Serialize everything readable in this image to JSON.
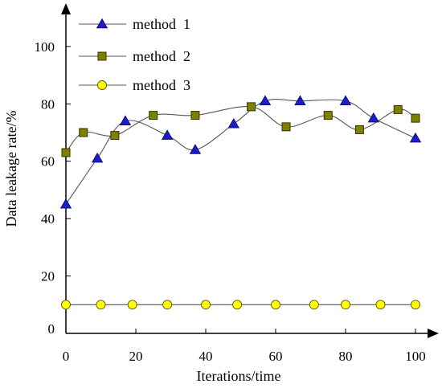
{
  "chart_data": {
    "type": "line",
    "xlabel": "Iterations/time",
    "ylabel": "Data leakage rate/%",
    "xlim": [
      0,
      100
    ],
    "ylim": [
      0,
      112
    ],
    "x_ticks": [
      0,
      20,
      40,
      60,
      80,
      100
    ],
    "y_ticks": [
      0,
      20,
      40,
      60,
      80,
      100
    ],
    "grid": false,
    "legend_position": "top-left",
    "smooth": true,
    "series": [
      {
        "name": "method  1",
        "marker": "triangle",
        "marker_color": "#1c1cc8",
        "line_color": "#555555",
        "x": [
          0,
          9,
          17,
          29,
          37,
          48,
          57,
          67,
          80,
          88,
          100
        ],
        "y": [
          45,
          61,
          74,
          69,
          64,
          73,
          81,
          81,
          81,
          75,
          68
        ]
      },
      {
        "name": "method  2",
        "marker": "square",
        "marker_color": "#808000",
        "line_color": "#555555",
        "x": [
          0,
          5,
          14,
          25,
          37,
          53,
          63,
          75,
          84,
          95,
          100
        ],
        "y": [
          63,
          70,
          69,
          76,
          76,
          79,
          72,
          76,
          71,
          78,
          75
        ]
      },
      {
        "name": "method  3",
        "marker": "circle",
        "marker_color": "#ffff00",
        "line_color": "#555555",
        "x": [
          0,
          10,
          19,
          29,
          40,
          49,
          60,
          71,
          80,
          90,
          100
        ],
        "y": [
          10,
          10,
          10,
          10,
          10,
          10,
          10,
          10,
          10,
          10,
          10
        ]
      }
    ]
  }
}
